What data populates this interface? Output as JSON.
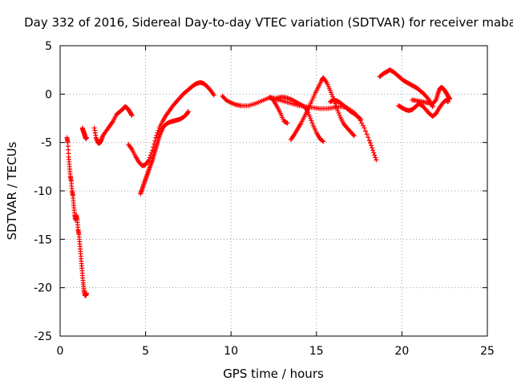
{
  "chart_data": {
    "type": "scatter",
    "title": "Day 332 of 2016, Sidereal Day-to-day VTEC variation (SDTVAR) for receiver maba",
    "xlabel": "GPS time / hours",
    "ylabel": "SDTVAR / TECUs",
    "xlim": [
      0,
      25
    ],
    "ylim": [
      -25,
      5
    ],
    "xticks": [
      0,
      5,
      10,
      15,
      20,
      25
    ],
    "yticks": [
      -25,
      -20,
      -15,
      -10,
      -5,
      0,
      5
    ],
    "xtick_labels": [
      "0",
      "5",
      "10",
      "15",
      "20",
      "25"
    ],
    "ytick_labels": [
      "-25",
      "-20",
      "-15",
      "-10",
      "-5",
      "0",
      "5"
    ],
    "grid": true,
    "marker": "+",
    "color": "#ff0000",
    "series": [
      {
        "name": "seg1",
        "points": [
          [
            0.4,
            -4.5
          ],
          [
            0.45,
            -5
          ],
          [
            0.5,
            -6.5
          ],
          [
            0.55,
            -7.5
          ],
          [
            0.6,
            -8.5
          ],
          [
            0.65,
            -9
          ],
          [
            0.7,
            -10
          ],
          [
            0.75,
            -10.5
          ],
          [
            0.8,
            -11.5
          ],
          [
            0.85,
            -12.5
          ],
          [
            0.9,
            -13
          ],
          [
            0.95,
            -12.5
          ],
          [
            1.0,
            -13
          ],
          [
            1.05,
            -14
          ],
          [
            1.1,
            -14.5
          ],
          [
            1.15,
            -15.5
          ],
          [
            1.2,
            -16.5
          ],
          [
            1.25,
            -17.5
          ],
          [
            1.3,
            -18.5
          ],
          [
            1.35,
            -19.5
          ],
          [
            1.4,
            -20.3
          ],
          [
            1.45,
            -20.8
          ],
          [
            1.5,
            -20.8
          ],
          [
            1.55,
            -20.6
          ]
        ]
      },
      {
        "name": "seg2",
        "points": [
          [
            1.3,
            -3.5
          ],
          [
            1.35,
            -3.8
          ],
          [
            1.4,
            -4
          ],
          [
            1.45,
            -4.3
          ],
          [
            1.5,
            -4.6
          ],
          [
            1.55,
            -4.5
          ]
        ]
      },
      {
        "name": "seg3",
        "points": [
          [
            2.0,
            -3.5
          ],
          [
            2.1,
            -4.5
          ],
          [
            2.2,
            -5
          ],
          [
            2.3,
            -5.1
          ],
          [
            2.4,
            -4.8
          ],
          [
            2.5,
            -4.3
          ],
          [
            2.7,
            -3.8
          ],
          [
            2.9,
            -3.3
          ],
          [
            3.1,
            -2.8
          ],
          [
            3.3,
            -2.1
          ],
          [
            3.5,
            -1.8
          ],
          [
            3.7,
            -1.5
          ],
          [
            3.8,
            -1.3
          ],
          [
            3.9,
            -1.4
          ],
          [
            4.0,
            -1.6
          ],
          [
            4.1,
            -1.9
          ],
          [
            4.2,
            -2.2
          ]
        ]
      },
      {
        "name": "seg4",
        "points": [
          [
            4.0,
            -5.2
          ],
          [
            4.2,
            -5.7
          ],
          [
            4.4,
            -6.4
          ],
          [
            4.6,
            -7
          ],
          [
            4.8,
            -7.4
          ],
          [
            5.0,
            -7.3
          ],
          [
            5.2,
            -6.8
          ],
          [
            5.4,
            -5.8
          ],
          [
            5.6,
            -4.5
          ],
          [
            5.8,
            -3.5
          ],
          [
            6.0,
            -2.8
          ],
          [
            6.2,
            -2.2
          ],
          [
            6.4,
            -1.7
          ],
          [
            6.6,
            -1.2
          ],
          [
            6.8,
            -0.8
          ],
          [
            7.0,
            -0.4
          ],
          [
            7.2,
            0.0
          ],
          [
            7.4,
            0.3
          ],
          [
            7.6,
            0.6
          ],
          [
            7.8,
            0.9
          ],
          [
            8.0,
            1.1
          ],
          [
            8.2,
            1.2
          ],
          [
            8.4,
            1.1
          ],
          [
            8.6,
            0.8
          ],
          [
            8.8,
            0.4
          ],
          [
            9.0,
            -0.1
          ]
        ]
      },
      {
        "name": "seg5",
        "points": [
          [
            4.7,
            -10.3
          ],
          [
            4.8,
            -9.8
          ],
          [
            4.9,
            -9.3
          ],
          [
            5.0,
            -8.8
          ],
          [
            5.1,
            -8.3
          ],
          [
            5.2,
            -7.8
          ],
          [
            5.3,
            -7.3
          ],
          [
            5.4,
            -6.8
          ],
          [
            5.5,
            -6.2
          ],
          [
            5.6,
            -5.6
          ],
          [
            5.7,
            -5.0
          ],
          [
            5.8,
            -4.4
          ],
          [
            5.9,
            -3.9
          ],
          [
            6.0,
            -3.5
          ],
          [
            6.2,
            -3.1
          ],
          [
            6.4,
            -2.9
          ],
          [
            6.6,
            -2.8
          ],
          [
            6.8,
            -2.7
          ],
          [
            7.0,
            -2.6
          ],
          [
            7.2,
            -2.4
          ],
          [
            7.4,
            -2.1
          ],
          [
            7.5,
            -1.8
          ]
        ]
      },
      {
        "name": "seg6",
        "points": [
          [
            9.5,
            -0.2
          ],
          [
            9.7,
            -0.6
          ],
          [
            10.0,
            -0.9
          ],
          [
            10.3,
            -1.1
          ],
          [
            10.6,
            -1.2
          ],
          [
            11.0,
            -1.2
          ],
          [
            11.4,
            -1.0
          ],
          [
            11.8,
            -0.7
          ],
          [
            12.2,
            -0.4
          ],
          [
            12.5,
            -0.4
          ],
          [
            12.8,
            -0.6
          ],
          [
            13.2,
            -0.8
          ],
          [
            13.6,
            -1.0
          ],
          [
            14.0,
            -1.2
          ],
          [
            14.4,
            -1.3
          ],
          [
            14.8,
            -1.4
          ],
          [
            15.2,
            -1.5
          ],
          [
            15.6,
            -1.5
          ],
          [
            16.0,
            -1.4
          ],
          [
            16.4,
            -1.3
          ],
          [
            16.8,
            -1.4
          ],
          [
            17.2,
            -1.9
          ],
          [
            17.5,
            -2.5
          ],
          [
            17.8,
            -3.5
          ],
          [
            18.1,
            -4.8
          ],
          [
            18.3,
            -5.8
          ],
          [
            18.5,
            -6.8
          ]
        ]
      },
      {
        "name": "seg7",
        "points": [
          [
            12.3,
            -0.3
          ],
          [
            12.5,
            -0.7
          ],
          [
            12.7,
            -1.3
          ],
          [
            12.9,
            -2.0
          ],
          [
            13.1,
            -2.8
          ],
          [
            13.3,
            -3.0
          ]
        ]
      },
      {
        "name": "seg8",
        "points": [
          [
            12.7,
            -0.4
          ],
          [
            13.0,
            -0.3
          ],
          [
            13.3,
            -0.4
          ],
          [
            13.6,
            -0.6
          ],
          [
            13.9,
            -0.9
          ],
          [
            14.2,
            -1.2
          ],
          [
            14.4,
            -1.5
          ],
          [
            14.6,
            -2.3
          ],
          [
            14.8,
            -3.2
          ],
          [
            15.0,
            -4.0
          ],
          [
            15.2,
            -4.6
          ],
          [
            15.4,
            -4.9
          ]
        ]
      },
      {
        "name": "seg9",
        "points": [
          [
            13.5,
            -4.7
          ],
          [
            13.7,
            -4.2
          ],
          [
            13.9,
            -3.6
          ],
          [
            14.1,
            -3.0
          ],
          [
            14.3,
            -2.3
          ],
          [
            14.5,
            -1.6
          ],
          [
            14.7,
            -0.8
          ],
          [
            14.9,
            0.0
          ],
          [
            15.1,
            0.7
          ],
          [
            15.3,
            1.4
          ],
          [
            15.4,
            1.7
          ],
          [
            15.6,
            1.2
          ],
          [
            15.8,
            0.4
          ],
          [
            16.0,
            -0.5
          ],
          [
            16.2,
            -1.5
          ],
          [
            16.4,
            -2.4
          ],
          [
            16.6,
            -3.1
          ],
          [
            16.8,
            -3.5
          ],
          [
            17.0,
            -3.9
          ],
          [
            17.2,
            -4.3
          ]
        ]
      },
      {
        "name": "seg10",
        "points": [
          [
            15.8,
            -0.8
          ],
          [
            16.0,
            -0.6
          ],
          [
            16.2,
            -0.7
          ],
          [
            16.4,
            -0.9
          ],
          [
            16.6,
            -1.2
          ],
          [
            16.8,
            -1.5
          ],
          [
            17.0,
            -1.8
          ],
          [
            17.2,
            -2.0
          ],
          [
            17.4,
            -2.3
          ],
          [
            17.6,
            -2.6
          ]
        ]
      },
      {
        "name": "seg11",
        "points": [
          [
            18.7,
            1.8
          ],
          [
            18.9,
            2.1
          ],
          [
            19.1,
            2.3
          ],
          [
            19.3,
            2.5
          ],
          [
            19.5,
            2.3
          ],
          [
            19.7,
            2.0
          ],
          [
            19.9,
            1.7
          ],
          [
            20.1,
            1.4
          ],
          [
            20.3,
            1.2
          ],
          [
            20.5,
            1.0
          ],
          [
            20.7,
            0.8
          ],
          [
            20.9,
            0.6
          ],
          [
            21.1,
            0.3
          ],
          [
            21.3,
            0.0
          ],
          [
            21.5,
            -0.4
          ],
          [
            21.7,
            -0.9
          ],
          [
            21.8,
            -1.3
          ]
        ]
      },
      {
        "name": "seg12",
        "points": [
          [
            19.8,
            -1.2
          ],
          [
            20.0,
            -1.4
          ],
          [
            20.2,
            -1.6
          ],
          [
            20.4,
            -1.7
          ],
          [
            20.6,
            -1.6
          ],
          [
            20.8,
            -1.3
          ],
          [
            21.0,
            -1.0
          ],
          [
            21.2,
            -1.2
          ],
          [
            21.4,
            -1.6
          ],
          [
            21.6,
            -2.0
          ],
          [
            21.8,
            -2.3
          ],
          [
            22.0,
            -2.0
          ],
          [
            22.2,
            -1.4
          ],
          [
            22.4,
            -0.9
          ],
          [
            22.6,
            -0.6
          ],
          [
            22.7,
            -0.8
          ]
        ]
      },
      {
        "name": "seg13",
        "points": [
          [
            20.6,
            -0.6
          ],
          [
            20.9,
            -0.7
          ],
          [
            21.2,
            -0.8
          ],
          [
            21.5,
            -0.9
          ],
          [
            21.8,
            -1.0
          ],
          [
            22.0,
            -0.6
          ],
          [
            22.1,
            0.0
          ],
          [
            22.2,
            0.5
          ],
          [
            22.3,
            0.7
          ],
          [
            22.4,
            0.6
          ],
          [
            22.5,
            0.4
          ],
          [
            22.6,
            0.1
          ],
          [
            22.7,
            -0.2
          ],
          [
            22.8,
            -0.5
          ]
        ]
      }
    ]
  }
}
